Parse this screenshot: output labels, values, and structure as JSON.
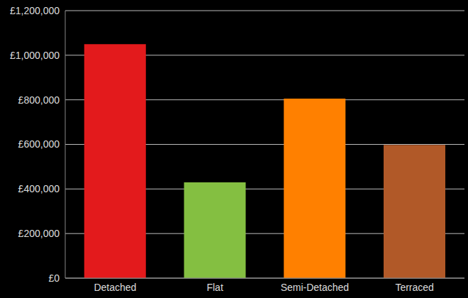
{
  "chart_data": {
    "type": "bar",
    "categories": [
      "Detached",
      "Flat",
      "Semi-Detached",
      "Terraced"
    ],
    "values": [
      1050000,
      430000,
      805000,
      598000
    ],
    "colors": [
      "#e31a1c",
      "#84bf41",
      "#ff8000",
      "#b15928"
    ],
    "ylim": [
      0,
      1200000
    ],
    "yticks": [
      {
        "value": 0,
        "label": "£0"
      },
      {
        "value": 200000,
        "label": "£200,000"
      },
      {
        "value": 400000,
        "label": "£400,000"
      },
      {
        "value": 600000,
        "label": "£600,000"
      },
      {
        "value": 800000,
        "label": "£800,000"
      },
      {
        "value": 1000000,
        "label": "£1,000,000"
      },
      {
        "value": 1200000,
        "label": "£1,200,000"
      }
    ],
    "grid": true
  }
}
